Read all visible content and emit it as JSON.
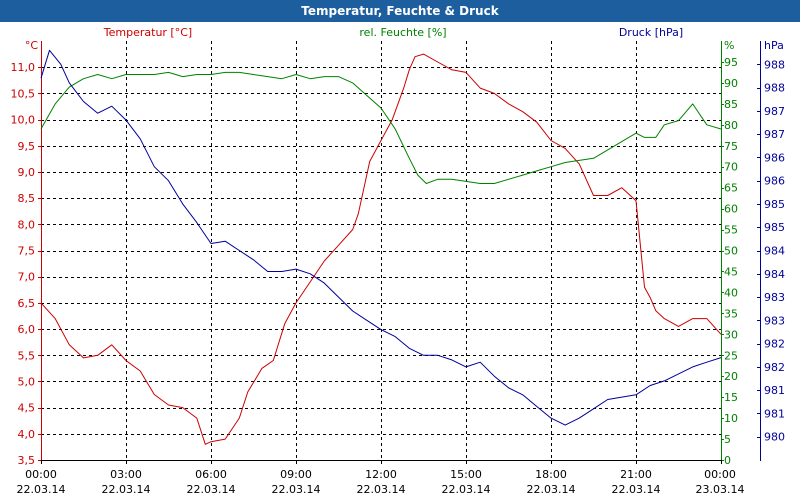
{
  "window": {
    "title": "Temperatur, Feuchte & Druck"
  },
  "colors": {
    "temp": "#cc0000",
    "hum": "#008000",
    "press": "#000099",
    "grid": "#000000",
    "titlebar": "#1d5f9e"
  },
  "chart_data": {
    "type": "line",
    "title": "Temperatur, Feuchte & Druck",
    "x_ticks": [
      {
        "time": "00:00",
        "date": "22.03.14"
      },
      {
        "time": "03:00",
        "date": "22.03.14"
      },
      {
        "time": "06:00",
        "date": "22.03.14"
      },
      {
        "time": "09:00",
        "date": "22.03.14"
      },
      {
        "time": "12:00",
        "date": "22.03.14"
      },
      {
        "time": "15:00",
        "date": "22.03.14"
      },
      {
        "time": "18:00",
        "date": "22.03.14"
      },
      {
        "time": "21:00",
        "date": "22.03.14"
      },
      {
        "time": "00:00",
        "date": "23.03.14"
      }
    ],
    "xlim_hours": [
      0,
      24
    ],
    "axes": {
      "temp": {
        "label": "Temperatur [°C]",
        "unit": "°C",
        "ylim": [
          3.5,
          11.5
        ],
        "ticks": [
          "11,0",
          "10,5",
          "10,0",
          "9,5",
          "9,0",
          "8,5",
          "8,0",
          "7,5",
          "7,0",
          "6,5",
          "6,0",
          "5,5",
          "5,0",
          "4,5",
          "4,0",
          "3,5"
        ],
        "tick_values": [
          11.0,
          10.5,
          10.0,
          9.5,
          9.0,
          8.5,
          8.0,
          7.5,
          7.0,
          6.5,
          6.0,
          5.5,
          5.0,
          4.5,
          4.0,
          3.5
        ]
      },
      "hum": {
        "label": "rel. Feuchte [%]",
        "unit": "%",
        "ylim": [
          0,
          100
        ],
        "ticks": [
          "95",
          "90",
          "85",
          "80",
          "75",
          "70",
          "65",
          "60",
          "55",
          "50",
          "45",
          "40",
          "35",
          "30",
          "25",
          "20",
          "15",
          "10",
          "5",
          "0"
        ],
        "tick_values": [
          95,
          90,
          85,
          80,
          75,
          70,
          65,
          60,
          55,
          50,
          45,
          40,
          35,
          30,
          25,
          20,
          15,
          10,
          5,
          0
        ]
      },
      "press": {
        "label": "Druck [hPa]",
        "unit": "hPa",
        "ylim": [
          979.5,
          988.5
        ],
        "ticks": [
          "988",
          "988",
          "987",
          "987",
          "986",
          "986",
          "985",
          "985",
          "984",
          "984",
          "983",
          "983",
          "982",
          "982",
          "981",
          "981",
          "980"
        ],
        "tick_values": [
          988.0,
          987.5,
          987.0,
          986.5,
          986.0,
          985.5,
          985.0,
          984.5,
          984.0,
          983.5,
          983.0,
          982.5,
          982.0,
          981.5,
          981.0,
          980.5,
          980.0
        ]
      }
    },
    "series": [
      {
        "name": "Temperatur",
        "unit": "°C",
        "axis": "temp",
        "x": [
          0,
          0.5,
          1,
          1.5,
          2,
          2.5,
          3,
          3.5,
          4,
          4.5,
          5,
          5.5,
          5.8,
          6,
          6.5,
          7,
          7.3,
          7.8,
          8.2,
          8.6,
          9,
          9.5,
          10,
          10.5,
          11,
          11.2,
          11.6,
          12,
          12.4,
          12.8,
          13,
          13.2,
          13.5,
          14,
          14.5,
          15,
          15.5,
          16,
          16.5,
          17,
          17.5,
          18,
          18.5,
          19,
          19.5,
          20,
          20.5,
          21,
          21.3,
          21.5,
          21.7,
          22,
          22.5,
          23,
          23.5,
          24
        ],
        "values": [
          6.5,
          6.2,
          5.7,
          5.45,
          5.5,
          5.7,
          5.4,
          5.2,
          4.75,
          4.55,
          4.5,
          4.3,
          3.8,
          3.85,
          3.9,
          4.3,
          4.8,
          5.25,
          5.4,
          6.1,
          6.5,
          6.9,
          7.3,
          7.6,
          7.9,
          8.2,
          9.2,
          9.6,
          10.0,
          10.6,
          10.95,
          11.2,
          11.25,
          11.1,
          10.95,
          10.9,
          10.6,
          10.5,
          10.3,
          10.15,
          9.95,
          9.6,
          9.45,
          9.15,
          8.55,
          8.55,
          8.7,
          8.45,
          6.8,
          6.6,
          6.35,
          6.2,
          6.05,
          6.2,
          6.2,
          5.9
        ]
      },
      {
        "name": "rel. Feuchte",
        "unit": "%",
        "axis": "hum",
        "x": [
          0,
          0.5,
          1,
          1.5,
          2,
          2.5,
          3,
          3.5,
          4,
          4.5,
          5,
          5.5,
          6,
          6.5,
          7,
          7.5,
          8,
          8.5,
          9,
          9.5,
          10,
          10.5,
          11,
          11.5,
          12,
          12.5,
          13,
          13.3,
          13.6,
          14,
          14.5,
          15,
          15.5,
          16,
          16.5,
          17,
          17.5,
          18,
          18.5,
          19,
          19.5,
          20,
          20.5,
          21,
          21.3,
          21.7,
          22,
          22.5,
          23,
          23.5,
          24
        ],
        "values": [
          79,
          85,
          89,
          91,
          92,
          91,
          92,
          92,
          92,
          92.5,
          91.5,
          92,
          92,
          92.5,
          92.5,
          92,
          91.5,
          91,
          92,
          91,
          91.5,
          91.5,
          90,
          87,
          84,
          79,
          72,
          68,
          66,
          67,
          67,
          66.5,
          66,
          66,
          67,
          68,
          69,
          70,
          71,
          71.5,
          72,
          74,
          76,
          78,
          77,
          77,
          80,
          81,
          85,
          80,
          79
        ]
      },
      {
        "name": "Druck",
        "unit": "hPa",
        "axis": "press",
        "x": [
          0,
          0.3,
          0.7,
          1,
          1.5,
          2,
          2.5,
          3,
          3.5,
          4,
          4.5,
          5,
          5.5,
          6,
          6.5,
          7,
          7.5,
          8,
          8.5,
          9,
          9.5,
          10,
          10.5,
          11,
          11.5,
          12,
          12.5,
          13,
          13.5,
          14,
          14.5,
          15,
          15.5,
          16,
          16.5,
          17,
          17.5,
          18,
          18.5,
          19,
          19.5,
          20,
          20.5,
          21,
          21.5,
          22,
          22.5,
          23,
          23.5,
          24
        ],
        "values": [
          987.7,
          988.3,
          988.0,
          987.6,
          987.2,
          986.95,
          987.1,
          986.8,
          986.4,
          985.8,
          985.5,
          985.0,
          984.6,
          984.15,
          984.2,
          984.0,
          983.8,
          983.55,
          983.55,
          983.6,
          983.5,
          983.3,
          983.0,
          982.7,
          982.5,
          982.3,
          982.15,
          981.9,
          981.75,
          981.75,
          981.65,
          981.5,
          981.6,
          981.3,
          981.05,
          980.9,
          980.65,
          980.4,
          980.25,
          980.4,
          980.6,
          980.8,
          980.85,
          980.9,
          981.1,
          981.2,
          981.35,
          981.5,
          981.6,
          981.7
        ]
      }
    ]
  }
}
